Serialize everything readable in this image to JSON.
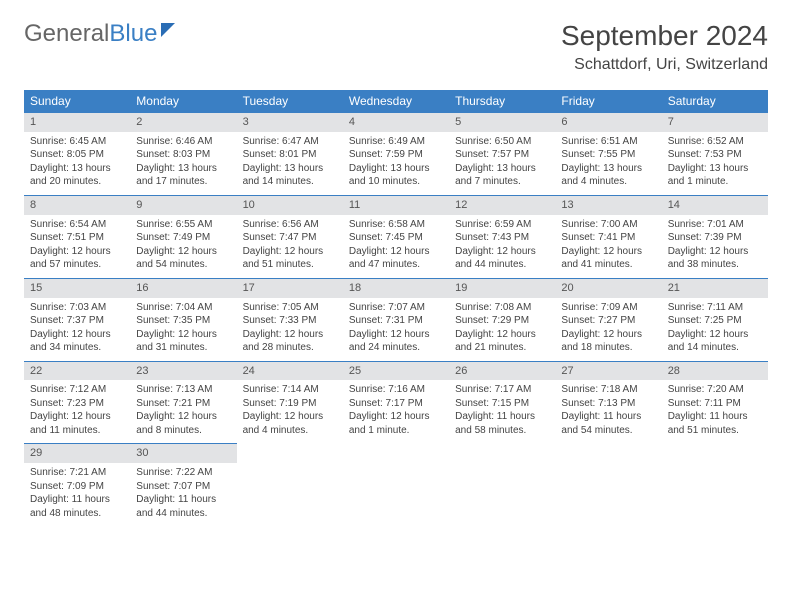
{
  "logo": {
    "part1": "General",
    "part2": "Blue"
  },
  "header": {
    "month": "September 2024",
    "location": "Schattdorf, Uri, Switzerland"
  },
  "dayNames": [
    "Sunday",
    "Monday",
    "Tuesday",
    "Wednesday",
    "Thursday",
    "Friday",
    "Saturday"
  ],
  "colors": {
    "headerBg": "#3a7fc4",
    "headerText": "#ffffff",
    "dayStripBg": "#e2e3e5",
    "borderTop": "#3a7fc4",
    "text": "#444444"
  },
  "weeks": [
    [
      {
        "num": "1",
        "sr": "Sunrise: 6:45 AM",
        "ss": "Sunset: 8:05 PM",
        "dl": "Daylight: 13 hours and 20 minutes."
      },
      {
        "num": "2",
        "sr": "Sunrise: 6:46 AM",
        "ss": "Sunset: 8:03 PM",
        "dl": "Daylight: 13 hours and 17 minutes."
      },
      {
        "num": "3",
        "sr": "Sunrise: 6:47 AM",
        "ss": "Sunset: 8:01 PM",
        "dl": "Daylight: 13 hours and 14 minutes."
      },
      {
        "num": "4",
        "sr": "Sunrise: 6:49 AM",
        "ss": "Sunset: 7:59 PM",
        "dl": "Daylight: 13 hours and 10 minutes."
      },
      {
        "num": "5",
        "sr": "Sunrise: 6:50 AM",
        "ss": "Sunset: 7:57 PM",
        "dl": "Daylight: 13 hours and 7 minutes."
      },
      {
        "num": "6",
        "sr": "Sunrise: 6:51 AM",
        "ss": "Sunset: 7:55 PM",
        "dl": "Daylight: 13 hours and 4 minutes."
      },
      {
        "num": "7",
        "sr": "Sunrise: 6:52 AM",
        "ss": "Sunset: 7:53 PM",
        "dl": "Daylight: 13 hours and 1 minute."
      }
    ],
    [
      {
        "num": "8",
        "sr": "Sunrise: 6:54 AM",
        "ss": "Sunset: 7:51 PM",
        "dl": "Daylight: 12 hours and 57 minutes."
      },
      {
        "num": "9",
        "sr": "Sunrise: 6:55 AM",
        "ss": "Sunset: 7:49 PM",
        "dl": "Daylight: 12 hours and 54 minutes."
      },
      {
        "num": "10",
        "sr": "Sunrise: 6:56 AM",
        "ss": "Sunset: 7:47 PM",
        "dl": "Daylight: 12 hours and 51 minutes."
      },
      {
        "num": "11",
        "sr": "Sunrise: 6:58 AM",
        "ss": "Sunset: 7:45 PM",
        "dl": "Daylight: 12 hours and 47 minutes."
      },
      {
        "num": "12",
        "sr": "Sunrise: 6:59 AM",
        "ss": "Sunset: 7:43 PM",
        "dl": "Daylight: 12 hours and 44 minutes."
      },
      {
        "num": "13",
        "sr": "Sunrise: 7:00 AM",
        "ss": "Sunset: 7:41 PM",
        "dl": "Daylight: 12 hours and 41 minutes."
      },
      {
        "num": "14",
        "sr": "Sunrise: 7:01 AM",
        "ss": "Sunset: 7:39 PM",
        "dl": "Daylight: 12 hours and 38 minutes."
      }
    ],
    [
      {
        "num": "15",
        "sr": "Sunrise: 7:03 AM",
        "ss": "Sunset: 7:37 PM",
        "dl": "Daylight: 12 hours and 34 minutes."
      },
      {
        "num": "16",
        "sr": "Sunrise: 7:04 AM",
        "ss": "Sunset: 7:35 PM",
        "dl": "Daylight: 12 hours and 31 minutes."
      },
      {
        "num": "17",
        "sr": "Sunrise: 7:05 AM",
        "ss": "Sunset: 7:33 PM",
        "dl": "Daylight: 12 hours and 28 minutes."
      },
      {
        "num": "18",
        "sr": "Sunrise: 7:07 AM",
        "ss": "Sunset: 7:31 PM",
        "dl": "Daylight: 12 hours and 24 minutes."
      },
      {
        "num": "19",
        "sr": "Sunrise: 7:08 AM",
        "ss": "Sunset: 7:29 PM",
        "dl": "Daylight: 12 hours and 21 minutes."
      },
      {
        "num": "20",
        "sr": "Sunrise: 7:09 AM",
        "ss": "Sunset: 7:27 PM",
        "dl": "Daylight: 12 hours and 18 minutes."
      },
      {
        "num": "21",
        "sr": "Sunrise: 7:11 AM",
        "ss": "Sunset: 7:25 PM",
        "dl": "Daylight: 12 hours and 14 minutes."
      }
    ],
    [
      {
        "num": "22",
        "sr": "Sunrise: 7:12 AM",
        "ss": "Sunset: 7:23 PM",
        "dl": "Daylight: 12 hours and 11 minutes."
      },
      {
        "num": "23",
        "sr": "Sunrise: 7:13 AM",
        "ss": "Sunset: 7:21 PM",
        "dl": "Daylight: 12 hours and 8 minutes."
      },
      {
        "num": "24",
        "sr": "Sunrise: 7:14 AM",
        "ss": "Sunset: 7:19 PM",
        "dl": "Daylight: 12 hours and 4 minutes."
      },
      {
        "num": "25",
        "sr": "Sunrise: 7:16 AM",
        "ss": "Sunset: 7:17 PM",
        "dl": "Daylight: 12 hours and 1 minute."
      },
      {
        "num": "26",
        "sr": "Sunrise: 7:17 AM",
        "ss": "Sunset: 7:15 PM",
        "dl": "Daylight: 11 hours and 58 minutes."
      },
      {
        "num": "27",
        "sr": "Sunrise: 7:18 AM",
        "ss": "Sunset: 7:13 PM",
        "dl": "Daylight: 11 hours and 54 minutes."
      },
      {
        "num": "28",
        "sr": "Sunrise: 7:20 AM",
        "ss": "Sunset: 7:11 PM",
        "dl": "Daylight: 11 hours and 51 minutes."
      }
    ],
    [
      {
        "num": "29",
        "sr": "Sunrise: 7:21 AM",
        "ss": "Sunset: 7:09 PM",
        "dl": "Daylight: 11 hours and 48 minutes."
      },
      {
        "num": "30",
        "sr": "Sunrise: 7:22 AM",
        "ss": "Sunset: 7:07 PM",
        "dl": "Daylight: 11 hours and 44 minutes."
      },
      null,
      null,
      null,
      null,
      null
    ]
  ]
}
